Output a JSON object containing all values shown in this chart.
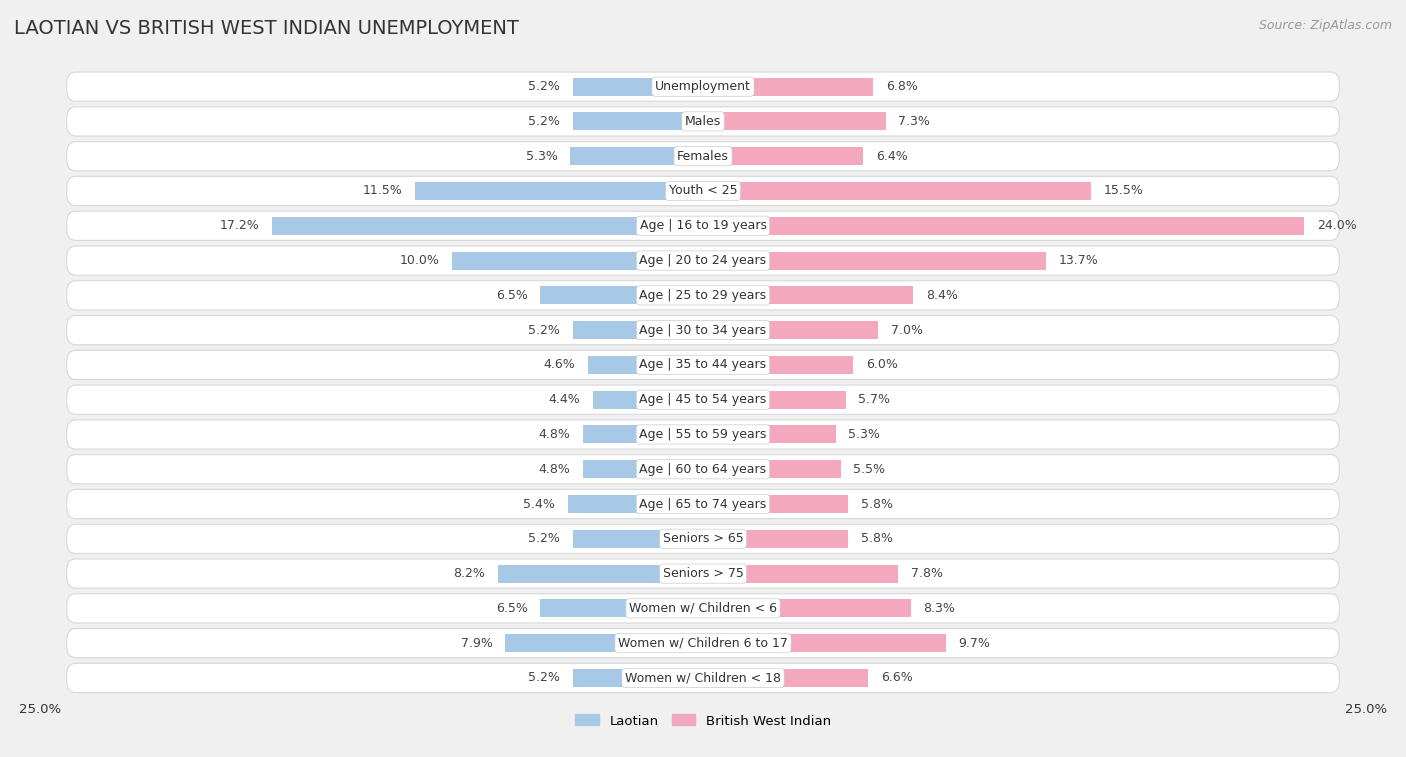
{
  "title": "LAOTIAN VS BRITISH WEST INDIAN UNEMPLOYMENT",
  "source": "Source: ZipAtlas.com",
  "categories": [
    "Unemployment",
    "Males",
    "Females",
    "Youth < 25",
    "Age | 16 to 19 years",
    "Age | 20 to 24 years",
    "Age | 25 to 29 years",
    "Age | 30 to 34 years",
    "Age | 35 to 44 years",
    "Age | 45 to 54 years",
    "Age | 55 to 59 years",
    "Age | 60 to 64 years",
    "Age | 65 to 74 years",
    "Seniors > 65",
    "Seniors > 75",
    "Women w/ Children < 6",
    "Women w/ Children 6 to 17",
    "Women w/ Children < 18"
  ],
  "laotian": [
    5.2,
    5.2,
    5.3,
    11.5,
    17.2,
    10.0,
    6.5,
    5.2,
    4.6,
    4.4,
    4.8,
    4.8,
    5.4,
    5.2,
    8.2,
    6.5,
    7.9,
    5.2
  ],
  "british_west_indian": [
    6.8,
    7.3,
    6.4,
    15.5,
    24.0,
    13.7,
    8.4,
    7.0,
    6.0,
    5.7,
    5.3,
    5.5,
    5.8,
    5.8,
    7.8,
    8.3,
    9.7,
    6.6
  ],
  "laotian_color": "#a8c8e8",
  "british_west_indian_color": "#f4a8be",
  "background_color": "#f0f0f0",
  "row_bg_color": "#ffffff",
  "row_border_color": "#d8d8d8",
  "title_fontsize": 14,
  "source_fontsize": 9,
  "label_fontsize": 9,
  "value_fontsize": 9,
  "xlim": 25.0,
  "bar_height": 0.52
}
